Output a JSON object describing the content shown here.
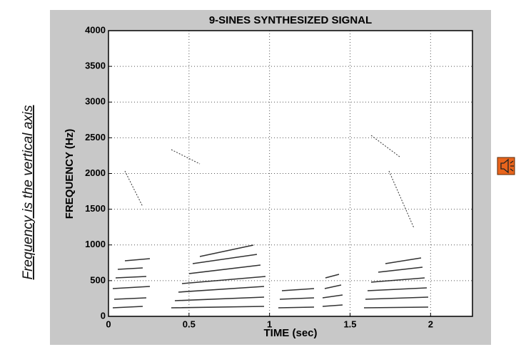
{
  "chart_data": {
    "type": "spectrogram",
    "title": "9-SINES SYNTHESIZED SIGNAL",
    "x_label": "TIME (sec)",
    "y_label": "FREQUENCY (Hz)",
    "xlim": [
      0,
      2.26
    ],
    "ylim": [
      0,
      4000
    ],
    "xticks": [
      0,
      0.5,
      1,
      1.5,
      2
    ],
    "yticks": [
      0,
      500,
      1000,
      1500,
      2000,
      2500,
      3000,
      3500,
      4000
    ],
    "grid": true
  },
  "caption": "Frequency is the vertical axis"
}
